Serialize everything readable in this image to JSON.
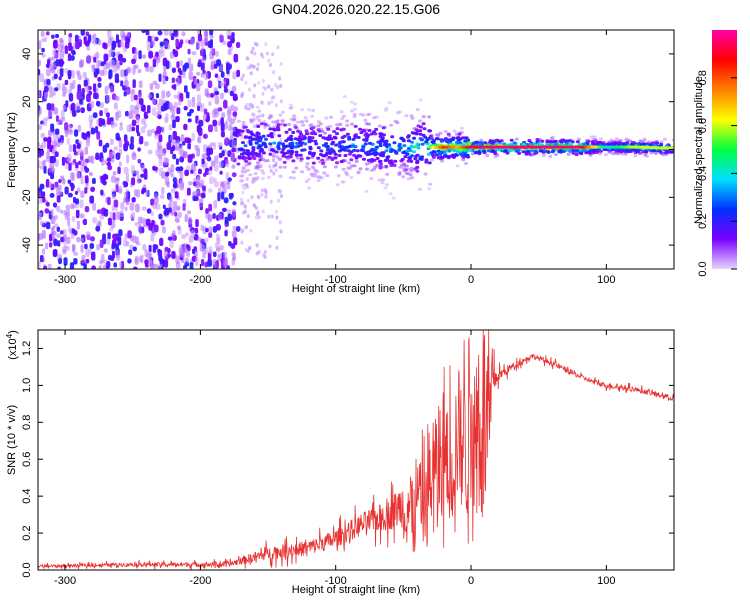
{
  "title": "GN04.2026.020.22.15.G06",
  "chart_data": [
    {
      "type": "heatmap",
      "name": "spectrogram",
      "xlabel": "Height of straight line (km)",
      "ylabel": "Frequency (Hz)",
      "xlim": [
        -320,
        150
      ],
      "ylim": [
        -50,
        50
      ],
      "xticks": [
        -300,
        -200,
        -100,
        0,
        100
      ],
      "yticks": [
        -40,
        -20,
        0,
        20,
        40
      ],
      "ridge": {
        "x": [
          -170,
          -150,
          -130,
          -110,
          -90,
          -70,
          -50,
          -30,
          -20,
          -10,
          0,
          20,
          40,
          60,
          80,
          100,
          120,
          150
        ],
        "center_hz": [
          2,
          3,
          2,
          1,
          2,
          1,
          1,
          1,
          1,
          1,
          1,
          1,
          1,
          1,
          1,
          1,
          1,
          0.5
        ],
        "amplitude": [
          0.3,
          0.32,
          0.3,
          0.3,
          0.32,
          0.35,
          0.38,
          0.55,
          0.85,
          0.7,
          0.92,
          0.95,
          0.95,
          0.95,
          0.95,
          0.4,
          0.6,
          0.6
        ]
      },
      "colorbar": {
        "label": "Normalized spectral amplitude",
        "range": [
          0,
          1
        ],
        "ticks": [
          "0.0",
          "0.2",
          "0.4",
          "0.6",
          "0.8"
        ],
        "colors": [
          "#e8d4ff",
          "#7a00ff",
          "#0030ff",
          "#00e0ff",
          "#00ff40",
          "#ffff00",
          "#ff8000",
          "#ff0000",
          "#ff00aa"
        ]
      }
    },
    {
      "type": "line",
      "name": "snr",
      "xlabel": "Height of straight line (km)",
      "ylabel": "SNR (10 * v/v)",
      "scale_label": "(x10",
      "scale_exp": "4",
      "scale_close": ")",
      "xlim": [
        -320,
        150
      ],
      "ylim": [
        0,
        1.3
      ],
      "xticks": [
        -300,
        -200,
        -100,
        0,
        100
      ],
      "yticks": [
        "0.0",
        "0.2",
        "0.4",
        "0.6",
        "0.8",
        "1.0",
        "1.2"
      ],
      "color": "#e83232",
      "envelope": {
        "x": [
          -320,
          -250,
          -180,
          -150,
          -120,
          -100,
          -80,
          -60,
          -40,
          -30,
          -20,
          -10,
          0,
          10,
          20,
          30,
          40,
          45,
          60,
          80,
          90,
          100,
          120,
          150
        ],
        "y": [
          0.02,
          0.03,
          0.03,
          0.09,
          0.12,
          0.17,
          0.25,
          0.3,
          0.42,
          0.55,
          0.7,
          0.85,
          0.95,
          1.0,
          1.05,
          1.1,
          1.14,
          1.16,
          1.12,
          1.05,
          1.02,
          1.0,
          0.98,
          0.93
        ],
        "noise": [
          0.01,
          0.015,
          0.02,
          0.05,
          0.06,
          0.07,
          0.09,
          0.12,
          0.25,
          0.35,
          0.45,
          0.5,
          0.4,
          0.25,
          0.05,
          0.03,
          0.02,
          0.02,
          0.02,
          0.02,
          0.02,
          0.02,
          0.02,
          0.02
        ]
      }
    }
  ]
}
